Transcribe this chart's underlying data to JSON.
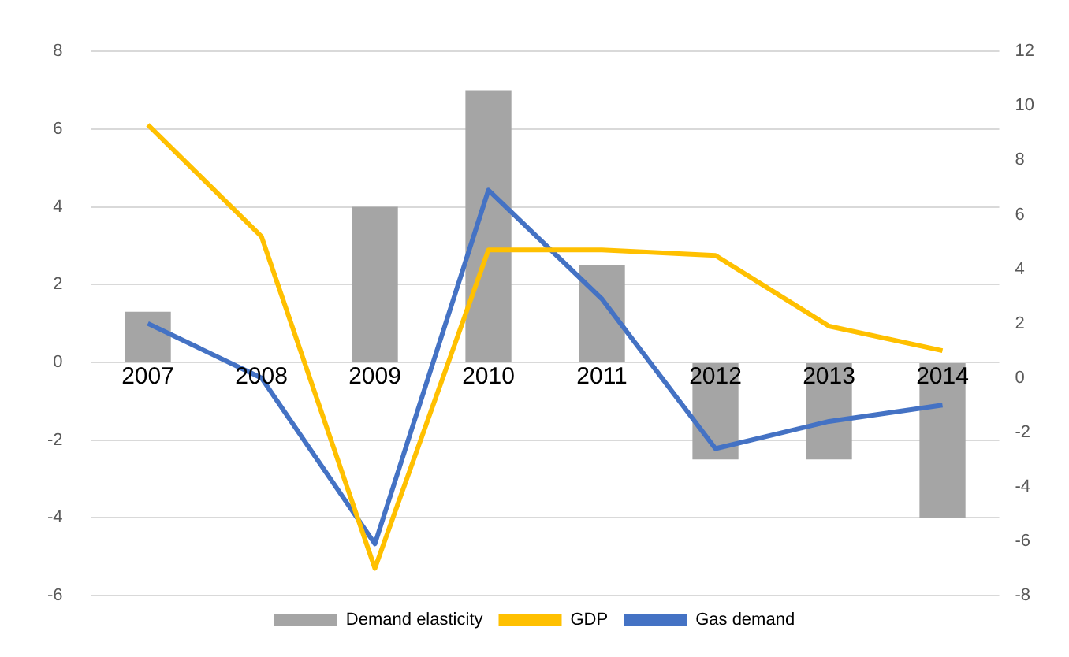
{
  "chart_data": {
    "type": "bar",
    "categories": [
      "2007",
      "2008",
      "2009",
      "2010",
      "2011",
      "2012",
      "2013",
      "2014"
    ],
    "series": [
      {
        "name": "Demand elasticity",
        "color": "#a5a5a5",
        "values": [
          1.3,
          0,
          4,
          7,
          2.5,
          -2.5,
          -2.5,
          -4
        ]
      },
      {
        "name": "GDP",
        "type": "line",
        "axis": "y2",
        "color": "#ffc000",
        "values": [
          9.3,
          5.2,
          -7.0,
          4.7,
          4.7,
          4.5,
          1.9,
          1.0
        ]
      },
      {
        "name": "Gas demand",
        "type": "line",
        "axis": "y2",
        "color": "#4472c4",
        "values": [
          2.0,
          0,
          -6.1,
          6.9,
          2.9,
          -2.6,
          -1.6,
          -1.0
        ]
      }
    ],
    "ylim": [
      -6,
      8
    ],
    "yticks": [
      -6,
      -4,
      -2,
      0,
      2,
      4,
      6,
      8
    ],
    "y2lim": [
      -8,
      12
    ],
    "y2ticks": [
      -8,
      -6,
      -4,
      -2,
      0,
      2,
      4,
      6,
      8,
      10,
      12
    ],
    "grid": "y",
    "legend": "bottom",
    "marker": "none"
  }
}
